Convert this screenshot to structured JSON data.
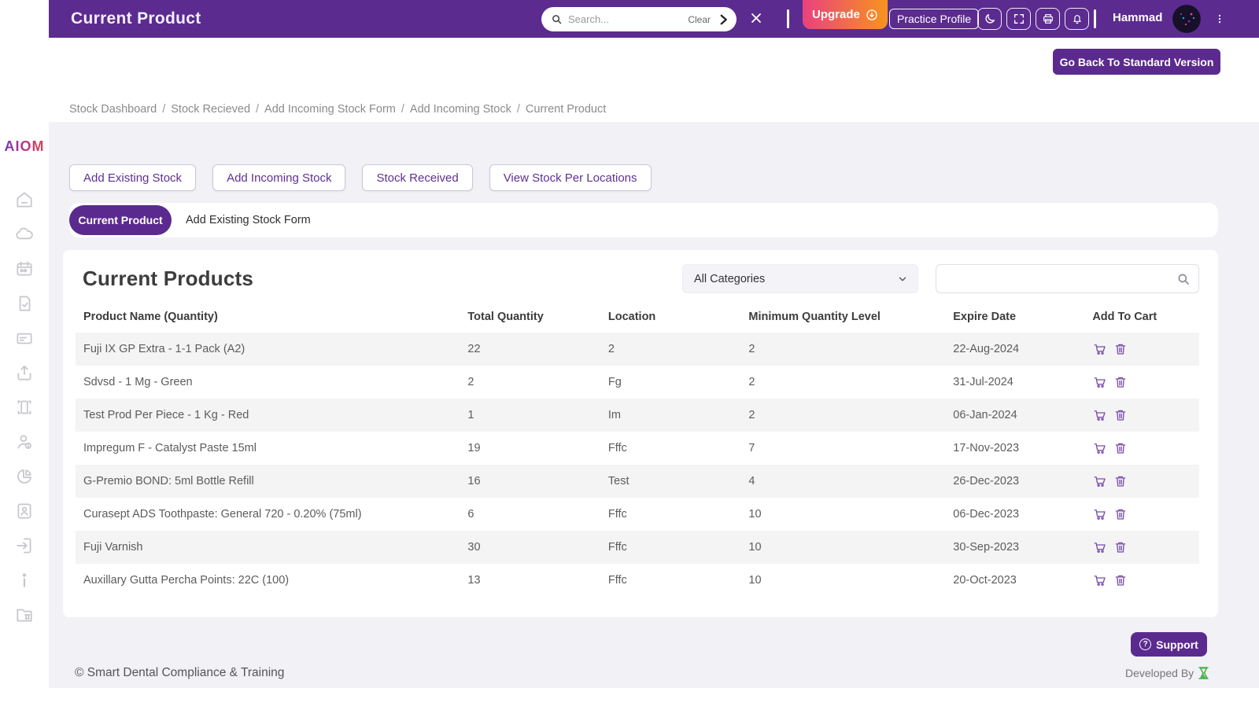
{
  "header": {
    "title": "Current Product",
    "search": {
      "placeholder": "Search...",
      "clear_label": "Clear"
    },
    "upgrade_label": "Upgrade",
    "practice_profile_label": "Practice Profile",
    "user_name": "Hammad",
    "icons": [
      "search-icon",
      "chevron-right-icon",
      "close-icon",
      "dark-mode-moon-icon",
      "fullscreen-icon",
      "printer-icon",
      "notifications-bell-icon",
      "menu-dots-icon"
    ]
  },
  "go_back_label": "Go Back To Standard Version",
  "breadcrumb": {
    "items": [
      "Stock Dashboard",
      "Stock Recieved",
      "Add Incoming Stock Form",
      "Add Incoming Stock",
      "Current Product"
    ],
    "separator": "/"
  },
  "sidebar": {
    "logo": "AIOM",
    "icons": [
      "home",
      "cloud",
      "calendar",
      "clipboard-check",
      "id-card",
      "upload",
      "devices",
      "user-info",
      "pie-chart",
      "contacts-book",
      "sign-out",
      "info",
      "folder-archive"
    ]
  },
  "actions": [
    "Add Existing Stock",
    "Add Incoming Stock",
    "Stock Received",
    "View Stock Per Locations"
  ],
  "tabs": [
    {
      "label": "Current Product",
      "active": true
    },
    {
      "label": "Add Existing Stock Form",
      "active": false
    }
  ],
  "products": {
    "title": "Current Products",
    "category_filter": "All Categories",
    "columns": [
      "Product Name (Quantity)",
      "Total Quantity",
      "Location",
      "Minimum Quantity Level",
      "Expire Date",
      "Add To Cart"
    ],
    "rows": [
      {
        "name": "Fuji IX GP Extra - 1-1 Pack (A2)",
        "total": "22",
        "location": "2",
        "min": "2",
        "expire": "22-Aug-2024"
      },
      {
        "name": "Sdvsd - 1 Mg - Green",
        "total": "2",
        "location": "Fg",
        "min": "2",
        "expire": "31-Jul-2024"
      },
      {
        "name": "Test Prod Per Piece - 1 Kg - Red",
        "total": "1",
        "location": "Im",
        "min": "2",
        "expire": "06-Jan-2024"
      },
      {
        "name": "Impregum F - Catalyst Paste 15ml",
        "total": "19",
        "location": "Fffc",
        "min": "7",
        "expire": "17-Nov-2023"
      },
      {
        "name": "G-Premio BOND: 5ml Bottle Refill",
        "total": "16",
        "location": "Test",
        "min": "4",
        "expire": "26-Dec-2023"
      },
      {
        "name": "Curasept ADS Toothpaste: General 720 - 0.20% (75ml)",
        "total": "6",
        "location": "Fffc",
        "min": "10",
        "expire": "06-Dec-2023"
      },
      {
        "name": "Fuji Varnish",
        "total": "30",
        "location": "Fffc",
        "min": "10",
        "expire": "30-Sep-2023"
      },
      {
        "name": "Auxillary Gutta Percha Points: 22C (100)",
        "total": "13",
        "location": "Fffc",
        "min": "10",
        "expire": "20-Oct-2023"
      }
    ]
  },
  "footer": {
    "copyright": "© Smart Dental Compliance & Training",
    "support_label": "Support",
    "developed_by": "Developed By"
  },
  "colors": {
    "header_purple": "#5b2b90",
    "accent_purple": "#5b2a8e",
    "upgrade_gradient_start": "#e9417e",
    "upgrade_gradient_end": "#f7941d",
    "row_stripe": "#f4f4f5",
    "developed_by_logo_green": "#4caf50"
  }
}
